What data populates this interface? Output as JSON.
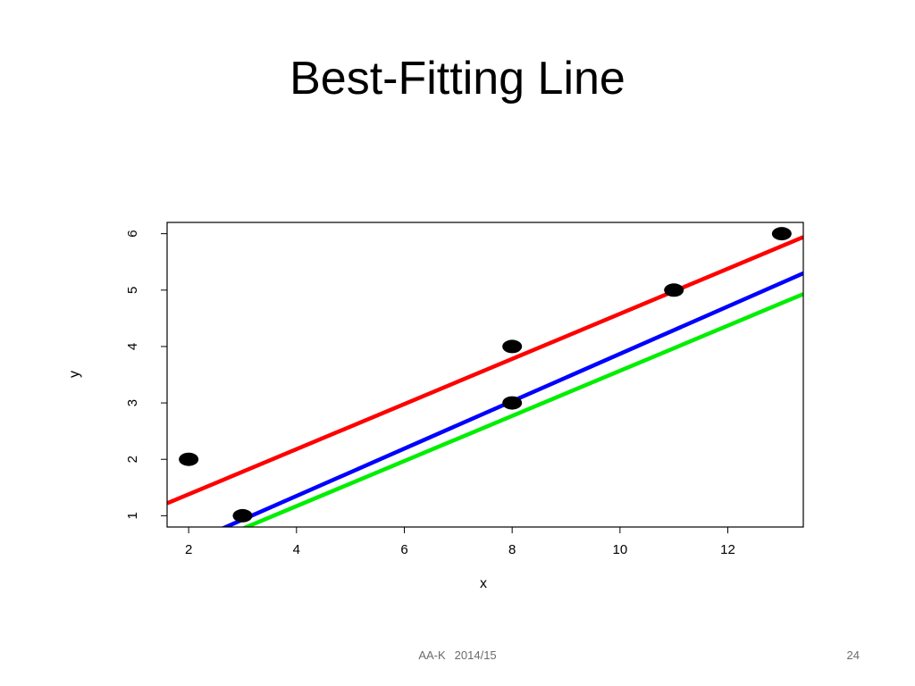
{
  "slide": {
    "title": "Best-Fitting Line",
    "footer_author": "AA-K",
    "footer_year": "2014/15",
    "page_number": "24"
  },
  "chart_data": {
    "type": "scatter",
    "title": "",
    "xlabel": "x",
    "ylabel": "y",
    "xlim": [
      1.6,
      13.4
    ],
    "ylim": [
      0.8,
      6.2
    ],
    "xticks": [
      2,
      4,
      6,
      8,
      10,
      12
    ],
    "yticks": [
      1,
      2,
      3,
      4,
      5,
      6
    ],
    "ytick_rotation": "vertical",
    "grid": false,
    "legend": "none",
    "points": {
      "x": [
        2,
        3,
        8,
        8,
        11,
        13
      ],
      "y": [
        2,
        1,
        4,
        3,
        5,
        6
      ],
      "color": "#000000"
    },
    "lines": [
      {
        "color": "#ff0000",
        "intercept": 0.58,
        "slope": 0.4
      },
      {
        "color": "#0000ff",
        "intercept": -0.33,
        "slope": 0.42
      },
      {
        "color": "#00ee00",
        "intercept": -0.43,
        "slope": 0.4
      }
    ]
  }
}
